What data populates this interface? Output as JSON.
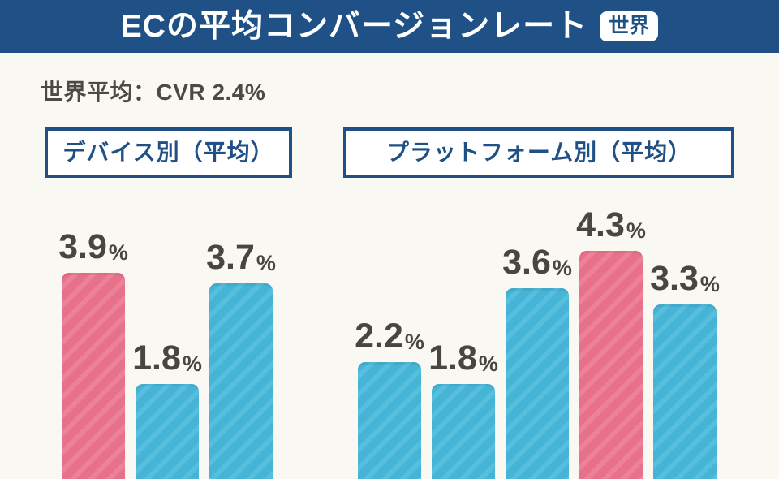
{
  "header": {
    "title": "ECの平均コンバージョンレート",
    "badge": "世界",
    "bg_color": "#1f5086",
    "text_color": "#ffffff"
  },
  "subtitle": "世界平均：CVR 2.4%",
  "colors": {
    "blue": "#1f5086",
    "background": "#f9f8f2",
    "label_text": "#474640",
    "pink": "#e7708a",
    "pink_stripe": "#ec8197",
    "teal": "#45b4d6",
    "teal_stripe": "#57bedd"
  },
  "chart_data": [
    {
      "type": "bar",
      "title": "デバイス別（平均）",
      "values": [
        3.9,
        1.8,
        3.7
      ],
      "value_labels": [
        "3.9%",
        "1.8%",
        "3.7%"
      ],
      "unit": "%",
      "bar_colors": [
        "pink",
        "teal",
        "teal"
      ],
      "ylim": [
        0,
        5
      ],
      "axes_shown": false,
      "legend": "none",
      "grid": false
    },
    {
      "type": "bar",
      "title": "プラットフォーム別（平均）",
      "values": [
        2.2,
        1.8,
        3.6,
        4.3,
        3.3
      ],
      "value_labels": [
        "2.2%",
        "1.8%",
        "3.6%",
        "4.3%",
        "3.3%"
      ],
      "unit": "%",
      "bar_colors": [
        "teal",
        "teal",
        "teal",
        "pink",
        "teal"
      ],
      "ylim": [
        0,
        5
      ],
      "axes_shown": false,
      "legend": "none",
      "grid": false
    }
  ]
}
